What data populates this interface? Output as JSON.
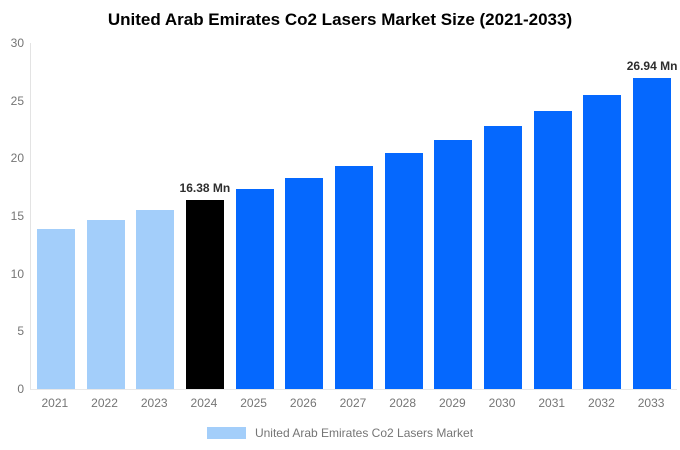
{
  "title": "United Arab Emirates Co2 Lasers Market Size (2021-2033)",
  "legend": {
    "label": "United Arab Emirates Co2 Lasers Market",
    "swatch_color": "#A3CEFA"
  },
  "colors": {
    "historical_bar": "#A3CEFA",
    "base_year_bar": "#000000",
    "forecast_bar": "#0568FE",
    "axis_line": "#E3E3E3",
    "tick_text": "#757575",
    "value_label_text": "#2E2E2E",
    "title_text": "#000000",
    "background": "#FFFFFF"
  },
  "chart_data": {
    "type": "bar",
    "title": "United Arab Emirates Co2 Lasers Market Size (2021-2033)",
    "categories": [
      "2021",
      "2022",
      "2023",
      "2024",
      "2025",
      "2026",
      "2027",
      "2028",
      "2029",
      "2030",
      "2031",
      "2032",
      "2033"
    ],
    "values": [
      13.87,
      14.66,
      15.5,
      16.38,
      17.31,
      18.3,
      19.34,
      20.44,
      21.61,
      22.84,
      24.14,
      25.52,
      26.94
    ],
    "unit": "Mn",
    "point_colors": [
      "#A3CEFA",
      "#A3CEFA",
      "#A3CEFA",
      "#000000",
      "#0568FE",
      "#0568FE",
      "#0568FE",
      "#0568FE",
      "#0568FE",
      "#0568FE",
      "#0568FE",
      "#0568FE",
      "#0568FE"
    ],
    "value_labels": [
      null,
      null,
      null,
      "16.38 Mn",
      null,
      null,
      null,
      null,
      null,
      null,
      null,
      null,
      "26.94 Mn"
    ],
    "xlabel": "",
    "ylabel": "",
    "ylim": [
      0,
      30
    ],
    "yticks": [
      0,
      5,
      10,
      15,
      20,
      25,
      30
    ],
    "grid": false,
    "legend_position": "bottom",
    "legend_entries": [
      "United Arab Emirates Co2 Lasers Market"
    ]
  }
}
